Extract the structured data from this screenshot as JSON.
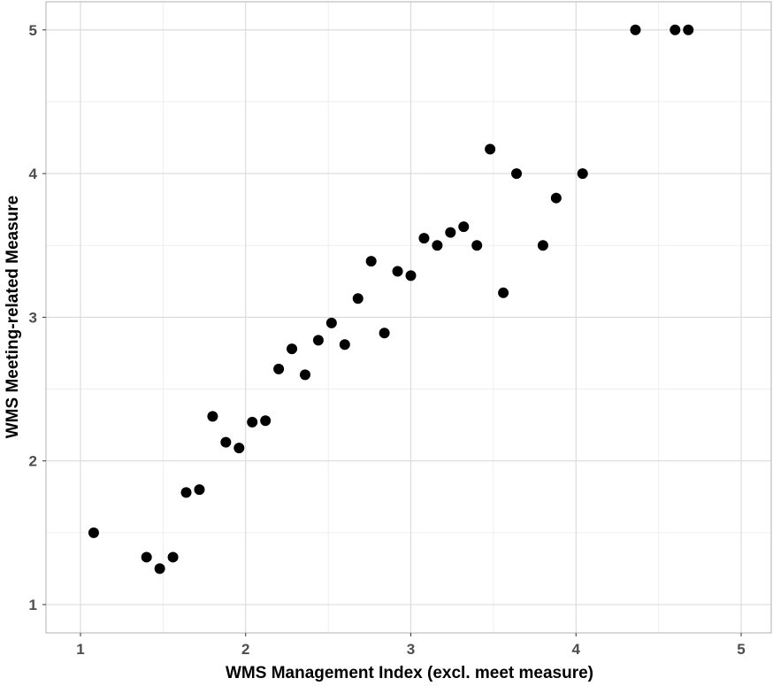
{
  "chart_data": {
    "type": "scatter",
    "title": "",
    "xlabel": "WMS Management Index (excl. meet measure)",
    "ylabel": "WMS Meeting-related Measure",
    "xlim": [
      0.8,
      5.2
    ],
    "ylim": [
      0.85,
      5.15
    ],
    "xticks": [
      1,
      2,
      3,
      4,
      5
    ],
    "yticks": [
      1,
      2,
      3,
      4,
      5
    ],
    "grid": true,
    "legend": "none",
    "colors": {
      "point": "#000000",
      "major_grid": "#d9d9d9",
      "minor_grid": "#ebebeb",
      "panel_border": "#bdbdbd",
      "tick_label": "#4d4d4d"
    },
    "series": [
      {
        "points": [
          {
            "x": 1.08,
            "y": 1.5
          },
          {
            "x": 1.4,
            "y": 1.33
          },
          {
            "x": 1.48,
            "y": 1.25
          },
          {
            "x": 1.56,
            "y": 1.33
          },
          {
            "x": 1.64,
            "y": 1.78
          },
          {
            "x": 1.72,
            "y": 1.8
          },
          {
            "x": 1.8,
            "y": 2.31
          },
          {
            "x": 1.88,
            "y": 2.13
          },
          {
            "x": 1.96,
            "y": 2.09
          },
          {
            "x": 2.04,
            "y": 2.27
          },
          {
            "x": 2.12,
            "y": 2.28
          },
          {
            "x": 2.2,
            "y": 2.64
          },
          {
            "x": 2.28,
            "y": 2.78
          },
          {
            "x": 2.36,
            "y": 2.6
          },
          {
            "x": 2.44,
            "y": 2.84
          },
          {
            "x": 2.52,
            "y": 2.96
          },
          {
            "x": 2.6,
            "y": 2.81
          },
          {
            "x": 2.68,
            "y": 3.13
          },
          {
            "x": 2.76,
            "y": 3.39
          },
          {
            "x": 2.84,
            "y": 2.89
          },
          {
            "x": 2.92,
            "y": 3.32
          },
          {
            "x": 3.0,
            "y": 3.29
          },
          {
            "x": 3.08,
            "y": 3.55
          },
          {
            "x": 3.16,
            "y": 3.5
          },
          {
            "x": 3.24,
            "y": 3.59
          },
          {
            "x": 3.32,
            "y": 3.63
          },
          {
            "x": 3.4,
            "y": 3.5
          },
          {
            "x": 3.48,
            "y": 4.17
          },
          {
            "x": 3.56,
            "y": 3.17
          },
          {
            "x": 3.64,
            "y": 4.0
          },
          {
            "x": 3.8,
            "y": 3.5
          },
          {
            "x": 3.88,
            "y": 3.83
          },
          {
            "x": 4.04,
            "y": 4.0
          },
          {
            "x": 4.36,
            "y": 5.0
          },
          {
            "x": 4.6,
            "y": 5.0
          },
          {
            "x": 4.68,
            "y": 5.0
          }
        ]
      }
    ]
  }
}
